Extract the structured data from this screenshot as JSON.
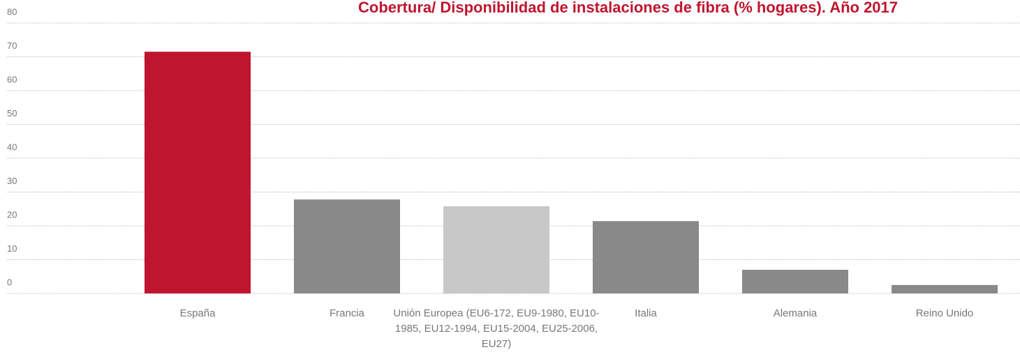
{
  "chart_data": {
    "type": "bar",
    "title": "Cobertura/ Disponibilidad de instalaciones de fibra (% hogares). Año 2017",
    "categories": [
      "España",
      "Francia",
      "Unión Europea (EU6-172, EU9-1980, EU10-1985, EU12-1994, EU15-2004, EU25-2006, EU27)",
      "Italia",
      "Alemania",
      "Reino Unido"
    ],
    "values": [
      71.5,
      27.8,
      25.8,
      21.4,
      7.0,
      2.5
    ],
    "colors": [
      "#c0152f",
      "#898989",
      "#c8c8c8",
      "#898989",
      "#898989",
      "#898989"
    ],
    "ylim": [
      0,
      80
    ],
    "yticks": [
      0,
      10,
      20,
      30,
      40,
      50,
      60,
      70,
      80
    ],
    "grid": true
  }
}
